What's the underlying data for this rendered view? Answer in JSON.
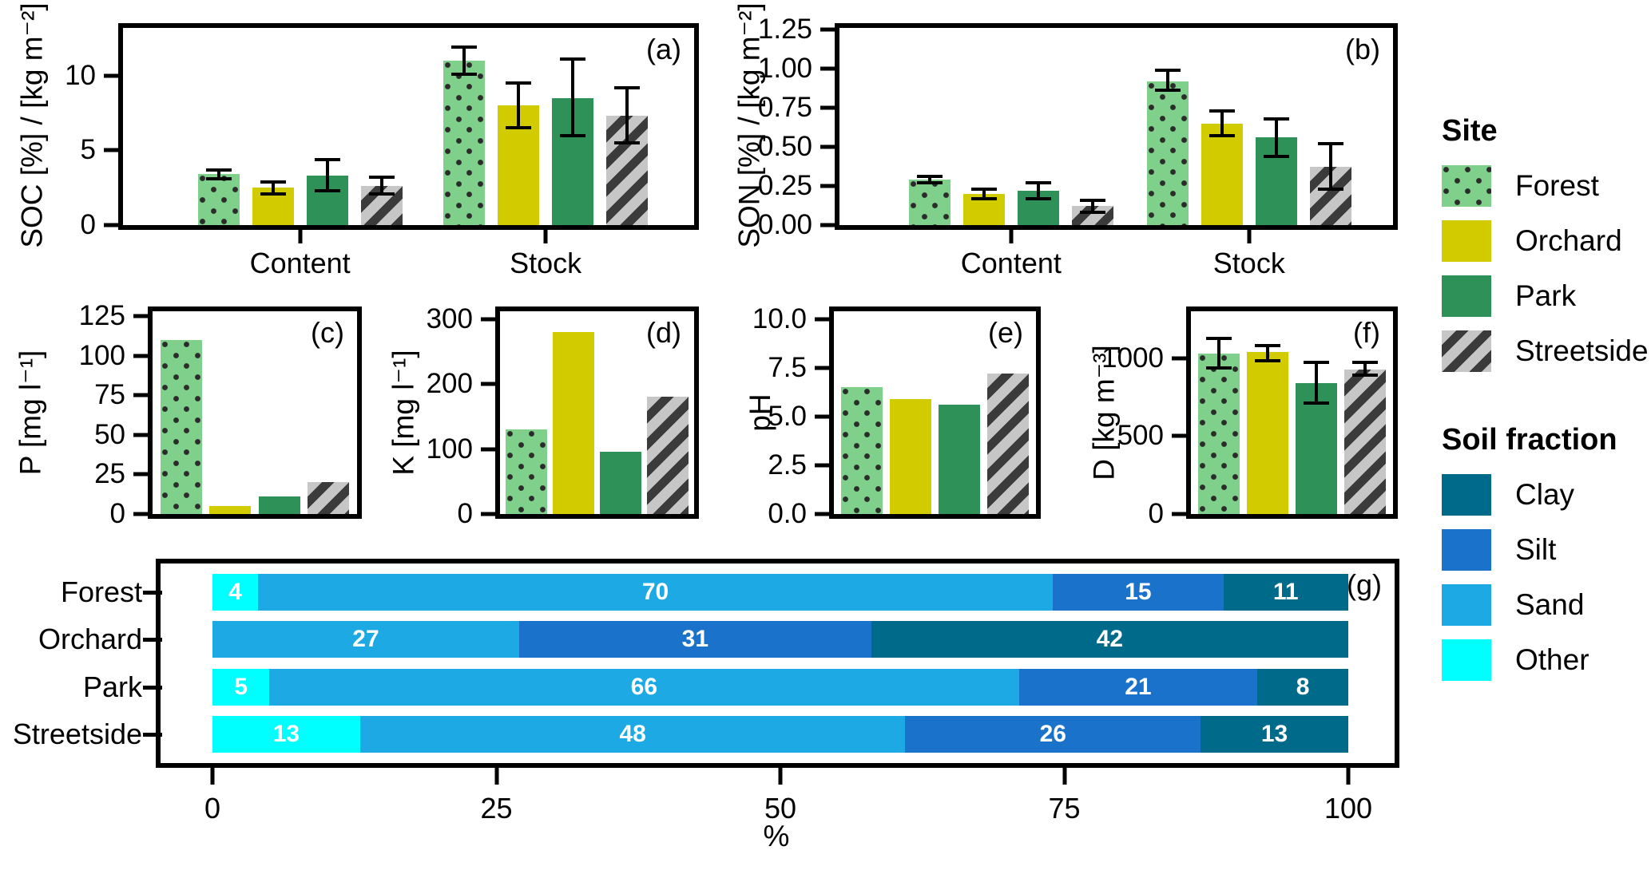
{
  "legend": {
    "site": {
      "title": "Site",
      "items": [
        {
          "label": "Forest",
          "key": "forest"
        },
        {
          "label": "Orchard",
          "key": "orchard"
        },
        {
          "label": "Park",
          "key": "park"
        },
        {
          "label": "Streetside",
          "key": "streetside"
        }
      ]
    },
    "soil": {
      "title": "Soil fraction",
      "items": [
        {
          "label": "Clay",
          "key": "clay"
        },
        {
          "label": "Silt",
          "key": "silt"
        },
        {
          "label": "Sand",
          "key": "sand"
        },
        {
          "label": "Other",
          "key": "other"
        }
      ]
    }
  },
  "colors": {
    "forest": "#7FD08A",
    "forest_dots": "#2B2B2B",
    "orchard": "#D2CB00",
    "park": "#2E9158",
    "streetside": "#C6C6C6",
    "streetside_stripes": "#3B3B3B",
    "clay": "#006A8B",
    "silt": "#1B72CB",
    "sand": "#1CA9E4",
    "other": "#00FFFF"
  },
  "chart_data": [
    {
      "id": "a",
      "type": "bar",
      "panel_label": "(a)",
      "ylabel": "SOC [%] / [kg m⁻²]",
      "ymax": 13.2,
      "yticks": [
        {
          "v": 0,
          "label": "0"
        },
        {
          "v": 5,
          "label": "5"
        },
        {
          "v": 10,
          "label": "10"
        }
      ],
      "groups": [
        "Content",
        "Stock"
      ],
      "group_centers": [
        31,
        74
      ],
      "series": [
        {
          "site": "Forest",
          "values": [
            3.4,
            11.0
          ],
          "err": [
            [
              3.1,
              3.7
            ],
            [
              10.1,
              11.9
            ]
          ]
        },
        {
          "site": "Orchard",
          "values": [
            2.5,
            8.0
          ],
          "err": [
            [
              2.1,
              2.9
            ],
            [
              6.5,
              9.5
            ]
          ]
        },
        {
          "site": "Park",
          "values": [
            3.3,
            8.5
          ],
          "err": [
            [
              2.3,
              4.4
            ],
            [
              6.0,
              11.1
            ]
          ]
        },
        {
          "site": "Streetside",
          "values": [
            2.6,
            7.3
          ],
          "err": [
            [
              2.1,
              3.2
            ],
            [
              5.5,
              9.2
            ]
          ]
        }
      ]
    },
    {
      "id": "b",
      "type": "bar",
      "panel_label": "(b)",
      "ylabel": "SON [%] / [kg m⁻²]",
      "ymax": 1.26,
      "yticks": [
        {
          "v": 0,
          "label": "0.00"
        },
        {
          "v": 0.25,
          "label": "0.25"
        },
        {
          "v": 0.5,
          "label": "0.50"
        },
        {
          "v": 0.75,
          "label": "0.75"
        },
        {
          "v": 1.0,
          "label": "1.00"
        },
        {
          "v": 1.25,
          "label": "1.25"
        }
      ],
      "groups": [
        "Content",
        "Stock"
      ],
      "group_centers": [
        31,
        74
      ],
      "series": [
        {
          "site": "Forest",
          "values": [
            0.29,
            0.92
          ],
          "err": [
            [
              0.27,
              0.31
            ],
            [
              0.86,
              0.99
            ]
          ]
        },
        {
          "site": "Orchard",
          "values": [
            0.2,
            0.65
          ],
          "err": [
            [
              0.17,
              0.23
            ],
            [
              0.57,
              0.73
            ]
          ]
        },
        {
          "site": "Park",
          "values": [
            0.22,
            0.56
          ],
          "err": [
            [
              0.17,
              0.27
            ],
            [
              0.44,
              0.68
            ]
          ]
        },
        {
          "site": "Streetside",
          "values": [
            0.12,
            0.37
          ],
          "err": [
            [
              0.08,
              0.16
            ],
            [
              0.23,
              0.52
            ]
          ]
        }
      ]
    },
    {
      "id": "c",
      "type": "bar",
      "panel_label": "(c)",
      "ylabel": "P [mg l⁻¹]",
      "ymax": 128,
      "yticks": [
        {
          "v": 0,
          "label": "0"
        },
        {
          "v": 25,
          "label": "25"
        },
        {
          "v": 50,
          "label": "50"
        },
        {
          "v": 75,
          "label": "75"
        },
        {
          "v": 100,
          "label": "100"
        },
        {
          "v": 125,
          "label": "125"
        }
      ],
      "series": [
        {
          "site": "Forest",
          "value": 110
        },
        {
          "site": "Orchard",
          "value": 5
        },
        {
          "site": "Park",
          "value": 11
        },
        {
          "site": "Streetside",
          "value": 20
        }
      ]
    },
    {
      "id": "d",
      "type": "bar",
      "panel_label": "(d)",
      "ylabel": "K [mg l⁻¹]",
      "ymax": 312,
      "yticks": [
        {
          "v": 0,
          "label": "0"
        },
        {
          "v": 100,
          "label": "100"
        },
        {
          "v": 200,
          "label": "200"
        },
        {
          "v": 300,
          "label": "300"
        }
      ],
      "series": [
        {
          "site": "Forest",
          "value": 130
        },
        {
          "site": "Orchard",
          "value": 280
        },
        {
          "site": "Park",
          "value": 96
        },
        {
          "site": "Streetside",
          "value": 180
        }
      ]
    },
    {
      "id": "e",
      "type": "bar",
      "panel_label": "(e)",
      "ylabel": "pH",
      "ymax": 10.4,
      "yticks": [
        {
          "v": 0,
          "label": "0.0"
        },
        {
          "v": 2.5,
          "label": "2.5"
        },
        {
          "v": 5,
          "label": "5.0"
        },
        {
          "v": 7.5,
          "label": "7.5"
        },
        {
          "v": 10,
          "label": "10.0"
        }
      ],
      "series": [
        {
          "site": "Forest",
          "value": 6.5
        },
        {
          "site": "Orchard",
          "value": 5.9
        },
        {
          "site": "Park",
          "value": 5.6
        },
        {
          "site": "Streetside",
          "value": 7.2
        }
      ]
    },
    {
      "id": "f",
      "type": "bar",
      "panel_label": "(f)",
      "ylabel": "D [kg m⁻³]",
      "ymax": 1300,
      "yticks": [
        {
          "v": 0,
          "label": "0"
        },
        {
          "v": 500,
          "label": "500"
        },
        {
          "v": 1000,
          "label": "1000"
        }
      ],
      "series": [
        {
          "site": "Forest",
          "value": 1030,
          "err": [
            935,
            1125
          ]
        },
        {
          "site": "Orchard",
          "value": 1040,
          "err": [
            985,
            1080
          ]
        },
        {
          "site": "Park",
          "value": 840,
          "err": [
            710,
            975
          ]
        },
        {
          "site": "Streetside",
          "value": 925,
          "err": [
            890,
            970
          ]
        }
      ]
    },
    {
      "id": "g",
      "type": "stacked_bar_h",
      "panel_label": "(g)",
      "xlabel": "%",
      "xticks": [
        0,
        25,
        50,
        75,
        100
      ],
      "xlim": [
        0,
        100
      ],
      "categories": [
        "Forest",
        "Orchard",
        "Park",
        "Streetside"
      ],
      "series": [
        {
          "name": "Other",
          "key": "other",
          "values": [
            4,
            0,
            5,
            13
          ]
        },
        {
          "name": "Sand",
          "key": "sand",
          "values": [
            70,
            27,
            66,
            48
          ]
        },
        {
          "name": "Silt",
          "key": "silt",
          "values": [
            15,
            31,
            21,
            26
          ]
        },
        {
          "name": "Clay",
          "key": "clay",
          "values": [
            11,
            42,
            8,
            13
          ]
        }
      ]
    }
  ]
}
